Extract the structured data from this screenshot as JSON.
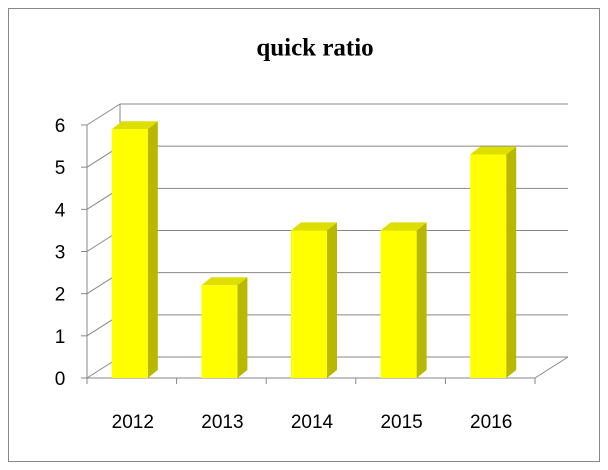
{
  "chart_data": {
    "type": "bar",
    "title": "quick ratio",
    "categories": [
      "2012",
      "2013",
      "2014",
      "2015",
      "2016"
    ],
    "values": [
      5.9,
      2.2,
      3.5,
      3.5,
      5.3
    ],
    "color": "#ffff00",
    "ylim": [
      0,
      6
    ],
    "yticks": [
      0,
      1,
      2,
      3,
      4,
      5,
      6
    ],
    "grid": true
  }
}
